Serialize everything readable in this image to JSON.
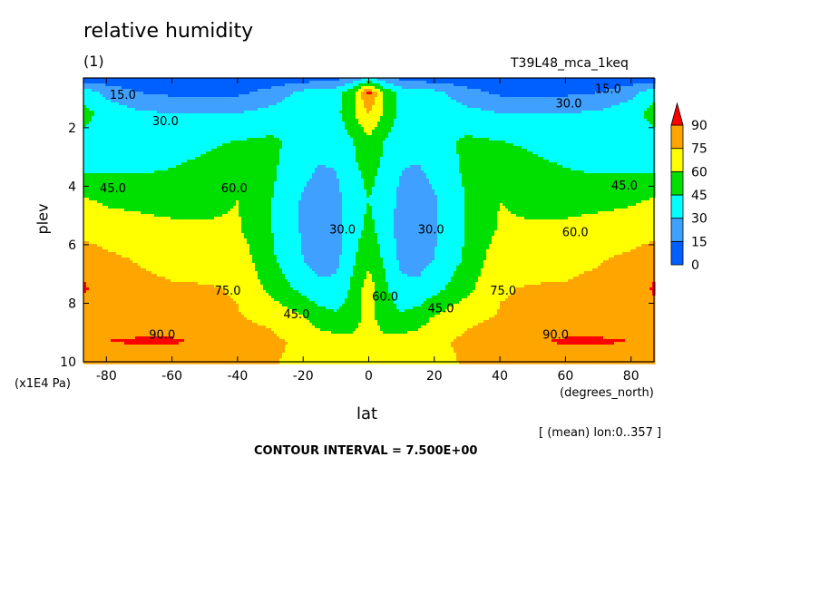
{
  "header": {
    "title": "relative humidity",
    "panel": "(1)",
    "run": "T39L48_mca_1keq"
  },
  "footer": {
    "y_unit": "(x1E4 Pa)",
    "x_unit": "(degrees_north)",
    "averaging": "[ (mean) lon:0..357 ]",
    "contour_interval": "CONTOUR INTERVAL = 7.500E+00"
  },
  "chart_data": {
    "type": "heatmap",
    "title": "relative humidity",
    "xlabel": "lat",
    "ylabel": "plev",
    "xlim": [
      -87,
      87
    ],
    "ylim": [
      10,
      0.3
    ],
    "x_ticks": [
      -80,
      -60,
      -40,
      -20,
      0,
      20,
      40,
      60,
      80
    ],
    "y_ticks": [
      2,
      4,
      6,
      8,
      10
    ],
    "x": [
      -87,
      -80,
      -70,
      -60,
      -50,
      -40,
      -30,
      -20,
      -15,
      -10,
      -5,
      0,
      5,
      10,
      15,
      20,
      30,
      40,
      50,
      60,
      70,
      80,
      87
    ],
    "y": [
      0.3,
      0.8,
      1.5,
      2.5,
      3.5,
      4.5,
      5.5,
      6.5,
      7.5,
      8.5,
      9.3,
      10
    ],
    "z": [
      [
        5,
        5,
        5,
        5,
        5,
        5,
        5,
        5,
        8,
        10,
        20,
        30,
        20,
        10,
        8,
        5,
        5,
        5,
        5,
        5,
        5,
        5,
        5
      ],
      [
        40,
        25,
        15,
        12,
        12,
        12,
        20,
        35,
        40,
        40,
        55,
        95,
        55,
        40,
        40,
        35,
        20,
        12,
        12,
        12,
        15,
        25,
        40
      ],
      [
        50,
        40,
        32,
        30,
        30,
        30,
        35,
        40,
        42,
        40,
        58,
        75,
        58,
        40,
        42,
        40,
        35,
        30,
        30,
        30,
        32,
        40,
        50
      ],
      [
        40,
        38,
        36,
        38,
        42,
        46,
        48,
        40,
        36,
        34,
        44,
        56,
        44,
        34,
        36,
        40,
        48,
        46,
        42,
        38,
        36,
        38,
        40
      ],
      [
        44,
        44,
        44,
        46,
        50,
        58,
        48,
        34,
        28,
        30,
        42,
        48,
        42,
        30,
        28,
        34,
        48,
        58,
        50,
        46,
        44,
        44,
        44
      ],
      [
        62,
        58,
        56,
        54,
        56,
        60,
        46,
        28,
        22,
        24,
        40,
        45,
        40,
        24,
        22,
        28,
        46,
        60,
        56,
        54,
        56,
        58,
        62
      ],
      [
        70,
        68,
        66,
        64,
        62,
        62,
        46,
        28,
        20,
        22,
        40,
        48,
        40,
        22,
        20,
        28,
        46,
        62,
        62,
        64,
        66,
        68,
        70
      ],
      [
        84,
        78,
        74,
        72,
        70,
        70,
        48,
        30,
        24,
        26,
        42,
        56,
        42,
        26,
        24,
        30,
        48,
        70,
        70,
        72,
        74,
        78,
        84
      ],
      [
        92,
        82,
        78,
        76,
        76,
        74,
        56,
        40,
        34,
        34,
        48,
        68,
        48,
        34,
        34,
        40,
        56,
        74,
        76,
        76,
        78,
        82,
        92
      ],
      [
        84,
        82,
        80,
        80,
        78,
        76,
        72,
        62,
        52,
        48,
        52,
        66,
        52,
        48,
        52,
        62,
        72,
        76,
        78,
        80,
        80,
        82,
        84
      ],
      [
        86,
        90,
        92,
        92,
        88,
        82,
        78,
        72,
        68,
        66,
        64,
        66,
        64,
        66,
        68,
        72,
        78,
        82,
        88,
        92,
        92,
        90,
        86
      ],
      [
        80,
        80,
        80,
        80,
        80,
        78,
        76,
        72,
        70,
        68,
        68,
        68,
        68,
        68,
        70,
        72,
        76,
        78,
        80,
        80,
        80,
        80,
        80
      ]
    ],
    "levels": [
      0,
      15,
      30,
      45,
      60,
      75,
      90
    ],
    "colorbar": {
      "labels": [
        "0",
        "15",
        "30",
        "45",
        "60",
        "75",
        "90"
      ],
      "colors": [
        "#0060ff",
        "#40a0ff",
        "#00ffff",
        "#00e000",
        "#ffff00",
        "#ffa500",
        "#ff0000"
      ]
    },
    "contour_labels": [
      {
        "text": "15.0",
        "lat": -75,
        "plev": 0.9
      },
      {
        "text": "30.0",
        "lat": -62,
        "plev": 1.8
      },
      {
        "text": "15.0",
        "lat": 73,
        "plev": 0.7
      },
      {
        "text": "30.0",
        "lat": 61,
        "plev": 1.2
      },
      {
        "text": "45.0",
        "lat": -78,
        "plev": 4.1
      },
      {
        "text": "60.0",
        "lat": -41,
        "plev": 4.1
      },
      {
        "text": "45.0",
        "lat": 78,
        "plev": 4.0
      },
      {
        "text": "60.0",
        "lat": 63,
        "plev": 5.6
      },
      {
        "text": "30.0",
        "lat": -8,
        "plev": 5.5
      },
      {
        "text": "30.0",
        "lat": 19,
        "plev": 5.5
      },
      {
        "text": "75.0",
        "lat": -43,
        "plev": 7.6
      },
      {
        "text": "75.0",
        "lat": 41,
        "plev": 7.6
      },
      {
        "text": "45.0",
        "lat": -22,
        "plev": 8.4
      },
      {
        "text": "45.0",
        "lat": 22,
        "plev": 8.2
      },
      {
        "text": "60.0",
        "lat": 5,
        "plev": 7.8
      },
      {
        "text": "90.0",
        "lat": -63,
        "plev": 9.1
      },
      {
        "text": "90.0",
        "lat": 57,
        "plev": 9.1
      }
    ],
    "grid": false
  }
}
